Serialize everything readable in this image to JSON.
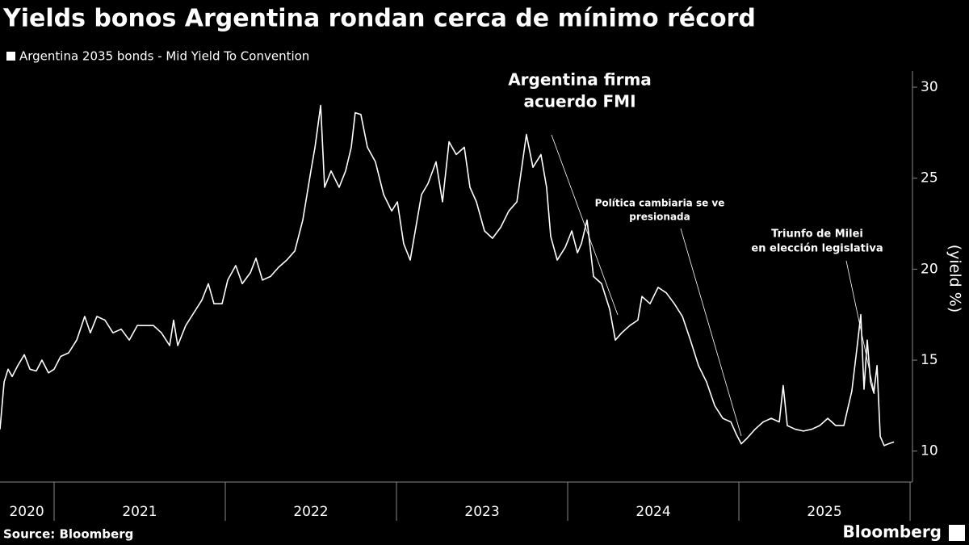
{
  "chart_data": {
    "type": "line",
    "title": "Yields bonos Argentina rondan cerca de mínimo récord",
    "y_label": "(yield %)",
    "source": "Source: Bloomberg",
    "brand": "Bloomberg",
    "series": [
      {
        "name": "Argentina 2035 bonds - Mid Yield To Convention",
        "color": "#ffffff",
        "x": [
          2020.684,
          2020.708,
          2020.731,
          2020.755,
          2020.788,
          2020.826,
          2020.859,
          2020.896,
          2020.929,
          2020.967,
          2021.0,
          2021.038,
          2021.085,
          2021.132,
          2021.179,
          2021.212,
          2021.25,
          2021.297,
          2021.344,
          2021.392,
          2021.439,
          2021.486,
          2021.533,
          2021.58,
          2021.627,
          2021.675,
          2021.698,
          2021.722,
          2021.769,
          2021.816,
          2021.863,
          2021.901,
          2021.934,
          2021.981,
          2022.014,
          2022.061,
          2022.099,
          2022.146,
          2022.179,
          2022.217,
          2022.264,
          2022.311,
          2022.359,
          2022.406,
          2022.453,
          2022.5,
          2022.524,
          2022.557,
          2022.58,
          2022.618,
          2022.665,
          2022.703,
          2022.736,
          2022.759,
          2022.792,
          2022.83,
          2022.877,
          2022.925,
          2022.972,
          2023.005,
          2023.042,
          2023.08,
          2023.113,
          2023.146,
          2023.184,
          2023.231,
          2023.269,
          2023.307,
          2023.349,
          2023.396,
          2023.429,
          2023.467,
          2023.514,
          2023.561,
          2023.609,
          2023.656,
          2023.703,
          2023.726,
          2023.759,
          2023.797,
          2023.844,
          2023.877,
          2023.901,
          2023.939,
          2023.986,
          2024.024,
          2024.057,
          2024.08,
          2024.113,
          2024.151,
          2024.198,
          2024.245,
          2024.278,
          2024.316,
          2024.363,
          2024.41,
          2024.434,
          2024.481,
          2024.528,
          2024.576,
          2024.623,
          2024.67,
          2024.717,
          2024.764,
          2024.811,
          2024.859,
          2024.906,
          2024.953,
          2024.986,
          2025.014,
          2025.047,
          2025.094,
          2025.142,
          2025.189,
          2025.236,
          2025.259,
          2025.283,
          2025.33,
          2025.377,
          2025.425,
          2025.472,
          2025.519,
          2025.566,
          2025.613,
          2025.66,
          2025.693,
          2025.712,
          2025.731,
          2025.75,
          2025.769,
          2025.788,
          2025.807,
          2025.826,
          2025.849,
          2025.873,
          2025.906
        ],
        "values": [
          11.2,
          13.8,
          14.5,
          14.1,
          14.7,
          15.3,
          14.5,
          14.4,
          15.0,
          14.3,
          14.5,
          15.2,
          15.4,
          16.1,
          17.4,
          16.5,
          17.4,
          17.2,
          16.5,
          16.7,
          16.1,
          16.9,
          16.9,
          16.9,
          16.5,
          15.8,
          17.2,
          15.8,
          16.9,
          17.6,
          18.3,
          19.2,
          18.1,
          18.1,
          19.4,
          20.2,
          19.2,
          19.8,
          20.6,
          19.4,
          19.6,
          20.1,
          20.5,
          21.0,
          22.7,
          25.4,
          26.7,
          29.0,
          24.5,
          25.4,
          24.5,
          25.4,
          26.7,
          28.6,
          28.5,
          26.7,
          25.9,
          24.1,
          23.2,
          23.7,
          21.4,
          20.5,
          22.3,
          24.1,
          24.7,
          25.9,
          23.7,
          27.0,
          26.3,
          26.7,
          24.5,
          23.7,
          22.1,
          21.7,
          22.3,
          23.2,
          23.7,
          25.2,
          27.4,
          25.6,
          26.3,
          24.5,
          21.8,
          20.5,
          21.2,
          22.1,
          20.9,
          21.4,
          22.7,
          19.6,
          19.2,
          17.8,
          16.1,
          16.5,
          16.9,
          17.2,
          18.5,
          18.1,
          19.0,
          18.7,
          18.1,
          17.4,
          16.1,
          14.7,
          13.8,
          12.5,
          11.8,
          11.6,
          10.9,
          10.4,
          10.7,
          11.2,
          11.6,
          11.8,
          11.6,
          13.6,
          11.4,
          11.2,
          11.1,
          11.2,
          11.4,
          11.8,
          11.4,
          11.4,
          13.3,
          15.9,
          17.5,
          13.4,
          16.1,
          13.8,
          13.2,
          14.7,
          10.8,
          10.3,
          10.4,
          10.5
        ]
      }
    ],
    "xlim": [
      2020.684,
      2026.014
    ],
    "xticks": [
      {
        "value": 2020.84,
        "label": "2020"
      },
      {
        "value": 2021.5,
        "label": "2021"
      },
      {
        "value": 2022.5,
        "label": "2022"
      },
      {
        "value": 2023.5,
        "label": "2023"
      },
      {
        "value": 2024.5,
        "label": "2024"
      },
      {
        "value": 2025.5,
        "label": "2025"
      }
    ],
    "x_boundaries": [
      2021,
      2022,
      2023,
      2024,
      2025,
      2026
    ],
    "ylim": [
      8.3,
      30.8
    ],
    "yticks": [
      10,
      15,
      20,
      25,
      30
    ],
    "annotations": [
      {
        "lines": [
          "Argentina firma",
          "acuerdo FMI"
        ]
      },
      {
        "lines": [
          "Política cambiaria se ve",
          "presionada"
        ]
      },
      {
        "lines": [
          "Triunfo de Milei",
          "en elección legislativa"
        ]
      }
    ]
  }
}
